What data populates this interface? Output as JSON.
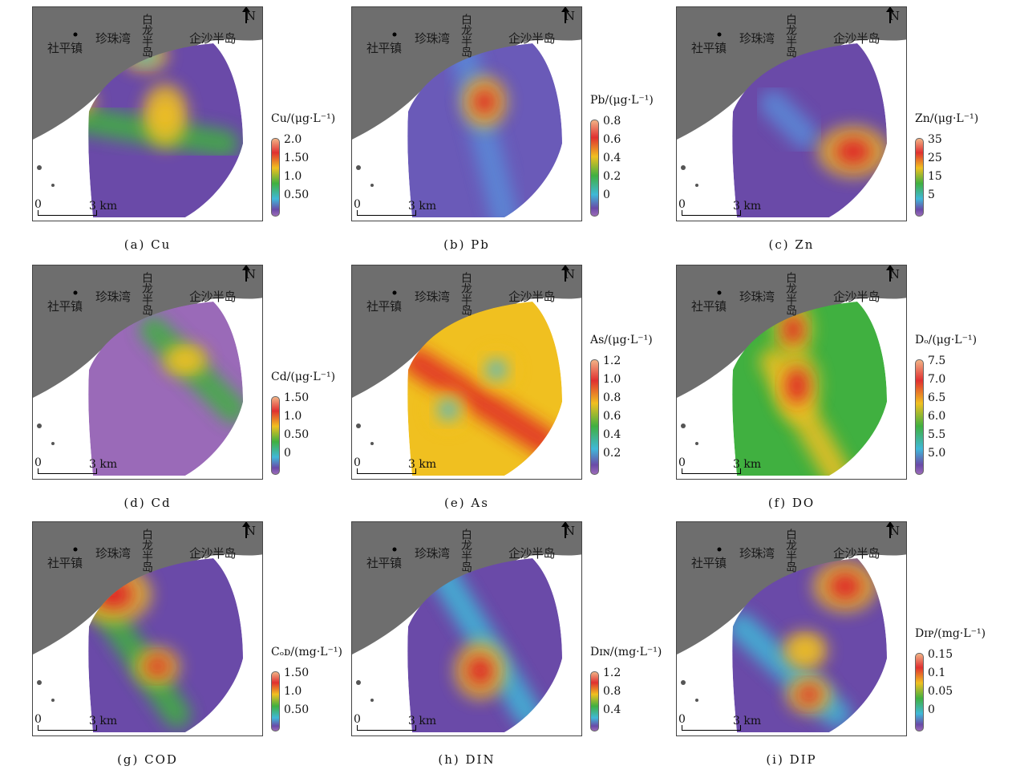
{
  "place_labels": {
    "town": "社平镇",
    "bay": "珍珠湾",
    "bailong": "白龙半岛",
    "qisha": "企沙半岛",
    "north": "N"
  },
  "scale": {
    "zero": "0",
    "distance": "3 km"
  },
  "panels": [
    {
      "id": "a",
      "caption": "(a) Cu",
      "legend_title": "Cu/(μg·L⁻¹)",
      "ticks": [
        "2.0",
        "1.50",
        "1.0",
        "0.50"
      ],
      "hotspots": [
        {
          "color": "#e02828"
        },
        {
          "color": "#f0c020"
        },
        {
          "color": "#40b8d8"
        }
      ]
    },
    {
      "id": "b",
      "caption": "(b) Pb",
      "legend_title": "Pb/(μg·L⁻¹)",
      "ticks": [
        "0.8",
        "0.6",
        "0.4",
        "0.2",
        "0"
      ],
      "hotspots": [
        {
          "color": "#e02828"
        }
      ]
    },
    {
      "id": "c",
      "caption": "(c) Zn",
      "legend_title": "Zn/(μg·L⁻¹)",
      "ticks": [
        "35",
        "25",
        "15",
        "5"
      ],
      "hotspots": [
        {
          "color": "#e02828"
        }
      ]
    },
    {
      "id": "d",
      "caption": "(d) Cd",
      "legend_title": "Cd/(μg·L⁻¹)",
      "ticks": [
        "1.50",
        "1.0",
        "0.50",
        "0"
      ],
      "hotspots": [
        {
          "color": "#f0c020"
        }
      ]
    },
    {
      "id": "e",
      "caption": "(e) As",
      "legend_title": "As/(μg·L⁻¹)",
      "ticks": [
        "1.2",
        "1.0",
        "0.8",
        "0.6",
        "0.4",
        "0.2"
      ],
      "hotspots": [
        {
          "color": "#40b8d8"
        },
        {
          "color": "#40b8d8"
        }
      ]
    },
    {
      "id": "f",
      "caption": "(f) DO",
      "legend_title": "Dₒ/(μg·L⁻¹)",
      "ticks": [
        "7.5",
        "7.0",
        "6.5",
        "6.0",
        "5.5",
        "5.0"
      ],
      "hotspots": [
        {
          "color": "#e02828"
        },
        {
          "color": "#e02828"
        }
      ]
    },
    {
      "id": "g",
      "caption": "(g) COD",
      "legend_title": "Cₒᴅ/(mg·L⁻¹)",
      "ticks": [
        "1.50",
        "1.0",
        "0.50"
      ],
      "hotspots": [
        {
          "color": "#e02828"
        },
        {
          "color": "#e02828"
        }
      ]
    },
    {
      "id": "h",
      "caption": "(h) DIN",
      "legend_title": "Dɪɴ/(mg·L⁻¹)",
      "ticks": [
        "1.2",
        "0.8",
        "0.4"
      ],
      "hotspots": [
        {
          "color": "#e02828"
        }
      ]
    },
    {
      "id": "i",
      "caption": "(i) DIP",
      "legend_title": "Dɪᴘ/(mg·L⁻¹)",
      "ticks": [
        "0.15",
        "0.1",
        "0.05",
        "0"
      ],
      "hotspots": [
        {
          "color": "#e02828"
        },
        {
          "color": "#f0c020"
        }
      ]
    }
  ]
}
